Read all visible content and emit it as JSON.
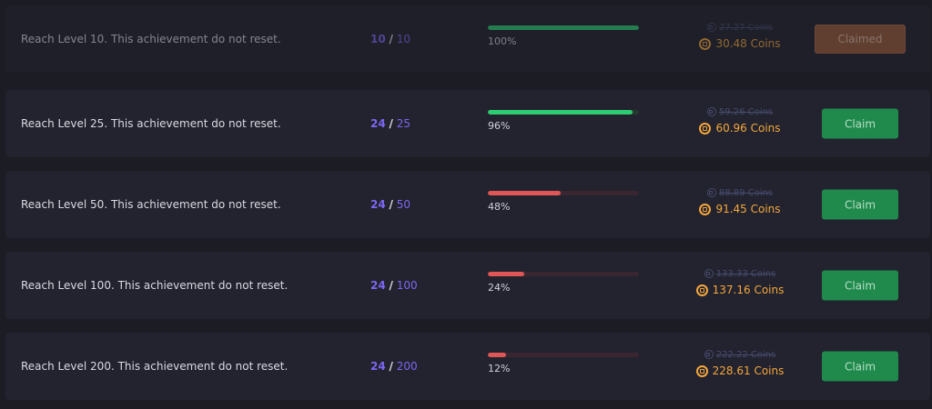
{
  "colors": {
    "accent_purple": "#7c67f2",
    "progress_green": "#2ecc71",
    "progress_red": "#e05555",
    "coin_orange": "#f4a63d",
    "claim_green": "#1f8a4c",
    "claimed_brown": "#9a5c3c"
  },
  "achievements": [
    {
      "description": "Reach Level 10. This achievement do not reset.",
      "current": "10",
      "separator": "/",
      "total": "10",
      "progress_fraction": 1.0,
      "progress_color": "green",
      "percent_label": "100%",
      "old_reward": "27.27 Coins",
      "new_reward": "30.48 Coins",
      "button_label": "Claimed",
      "button_state": "claimed"
    },
    {
      "description": "Reach Level 25. This achievement do not reset.",
      "current": "24",
      "separator": "/",
      "total": "25",
      "progress_fraction": 0.96,
      "progress_color": "green",
      "percent_label": "96%",
      "old_reward": "59.26 Coins",
      "new_reward": "60.96 Coins",
      "button_label": "Claim",
      "button_state": "claim"
    },
    {
      "description": "Reach Level 50. This achievement do not reset.",
      "current": "24",
      "separator": "/",
      "total": "50",
      "progress_fraction": 0.48,
      "progress_color": "red",
      "percent_label": "48%",
      "old_reward": "88.89 Coins",
      "new_reward": "91.45 Coins",
      "button_label": "Claim",
      "button_state": "claim"
    },
    {
      "description": "Reach Level 100. This achievement do not reset.",
      "current": "24",
      "separator": "/",
      "total": "100",
      "progress_fraction": 0.24,
      "progress_color": "red",
      "percent_label": "24%",
      "old_reward": "133.33 Coins",
      "new_reward": "137.16 Coins",
      "button_label": "Claim",
      "button_state": "claim"
    },
    {
      "description": "Reach Level 200. This achievement do not reset.",
      "current": "24",
      "separator": "/",
      "total": "200",
      "progress_fraction": 0.12,
      "progress_color": "red",
      "percent_label": "12%",
      "old_reward": "222.22 Coins",
      "new_reward": "228.61 Coins",
      "button_label": "Claim",
      "button_state": "claim"
    }
  ]
}
